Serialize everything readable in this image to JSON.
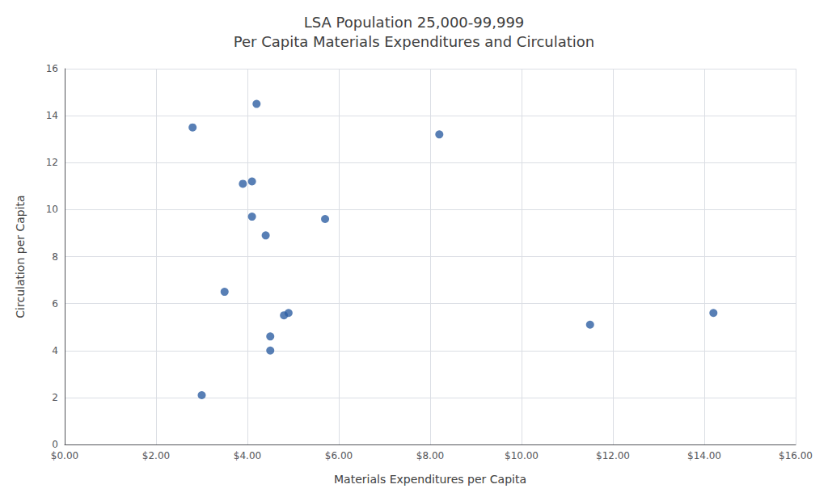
{
  "chart_data": {
    "type": "scatter",
    "title": "LSA Population 25,000-99,999",
    "subtitle": "Per Capita Materials Expenditures and Circulation",
    "xlabel": "Materials Expenditures per Capita",
    "ylabel": "Circulation per Capita",
    "x": [
      2.8,
      3.0,
      3.5,
      3.9,
      4.1,
      4.1,
      4.2,
      4.4,
      4.5,
      4.5,
      4.8,
      4.9,
      5.7,
      8.2,
      11.5,
      14.2
    ],
    "y": [
      13.5,
      2.1,
      6.5,
      11.1,
      11.2,
      9.7,
      14.5,
      8.9,
      4.6,
      4.0,
      5.5,
      5.6,
      9.6,
      13.2,
      5.1,
      5.6
    ],
    "color": "#2E5FA3",
    "xlim": [
      0,
      16
    ],
    "ylim": [
      0,
      16
    ],
    "xticks": [
      {
        "value": 0,
        "label": "$0.00"
      },
      {
        "value": 2,
        "label": "$2.00"
      },
      {
        "value": 4,
        "label": "$4.00"
      },
      {
        "value": 6,
        "label": "$6.00"
      },
      {
        "value": 8,
        "label": "$8.00"
      },
      {
        "value": 10,
        "label": "$10.00"
      },
      {
        "value": 12,
        "label": "$12.00"
      },
      {
        "value": 14,
        "label": "$14.00"
      },
      {
        "value": 16,
        "label": "$16.00"
      }
    ],
    "yticks": [
      0,
      2,
      4,
      6,
      8,
      10,
      12,
      14,
      16
    ],
    "grid": true
  }
}
